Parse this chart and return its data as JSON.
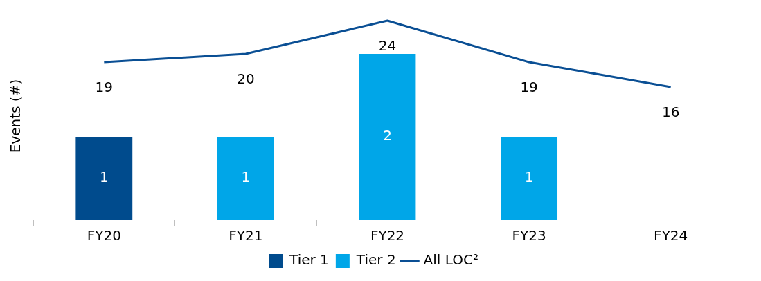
{
  "chart_data": {
    "type": "bar",
    "ylabel": "Events (#)",
    "categories": [
      "FY20",
      "FY21",
      "FY22",
      "FY23",
      "FY24"
    ],
    "stacked": true,
    "tick_labels": "x",
    "grid": false,
    "legend": "bottom",
    "data_labels": true,
    "series": [
      {
        "name": "Tier 1",
        "color": "#004b8d",
        "values": [
          1,
          null,
          null,
          null,
          null
        ]
      },
      {
        "name": "Tier 2",
        "color": "#00a6e8",
        "values": [
          null,
          1,
          2,
          1,
          null
        ]
      },
      {
        "name": "All LOC²",
        "type": "line",
        "axis": "y2",
        "color": "#0a4f94",
        "marker": "none",
        "line_style": "solid",
        "values": [
          19,
          20,
          24,
          19,
          16
        ]
      }
    ]
  }
}
